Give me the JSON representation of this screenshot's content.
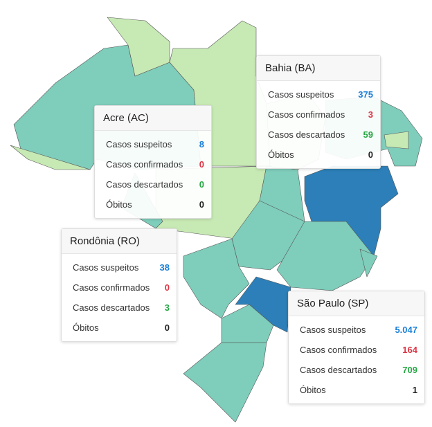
{
  "popups": [
    {
      "title": "Bahia (BA)",
      "rows": [
        {
          "label": "Casos suspeitos",
          "value": "375"
        },
        {
          "label": "Casos confirmados",
          "value": "3"
        },
        {
          "label": "Casos descartados",
          "value": "59"
        },
        {
          "label": "Óbitos",
          "value": "0"
        }
      ]
    },
    {
      "title": "Acre (AC)",
      "rows": [
        {
          "label": "Casos suspeitos",
          "value": "8"
        },
        {
          "label": "Casos confirmados",
          "value": "0"
        },
        {
          "label": "Casos descartados",
          "value": "0"
        },
        {
          "label": "Óbitos",
          "value": "0"
        }
      ]
    },
    {
      "title": "Rondônia (RO)",
      "rows": [
        {
          "label": "Casos suspeitos",
          "value": "38"
        },
        {
          "label": "Casos confirmados",
          "value": "0"
        },
        {
          "label": "Casos descartados",
          "value": "3"
        },
        {
          "label": "Óbitos",
          "value": "0"
        }
      ]
    },
    {
      "title": "São Paulo (SP)",
      "rows": [
        {
          "label": "Casos suspeitos",
          "value": "5.047"
        },
        {
          "label": "Casos confirmados",
          "value": "164"
        },
        {
          "label": "Casos descartados",
          "value": "709"
        },
        {
          "label": "Óbitos",
          "value": "1"
        }
      ]
    }
  ]
}
